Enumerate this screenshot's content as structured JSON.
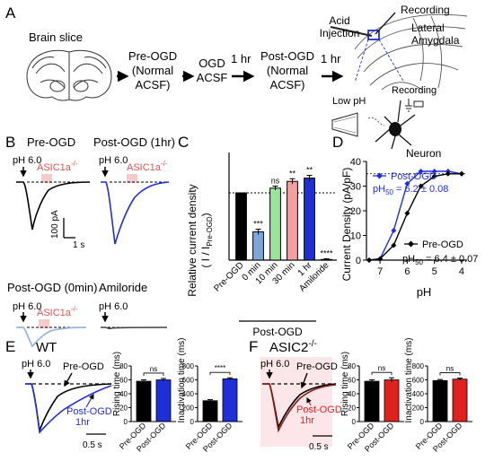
{
  "panelA": {
    "letter": "A",
    "brain_slice": "Brain slice",
    "preogd": [
      "Pre-OGD",
      "(Normal",
      "ACSF)"
    ],
    "ogd": [
      "OGD",
      "ACSF"
    ],
    "one_hr": "1 hr",
    "postogd": [
      "Post-OGD",
      "(Normal",
      "ACSF)"
    ],
    "acid": [
      "Acid",
      "Injection"
    ],
    "recording_top": "Recording",
    "lateral": [
      "Lateral",
      "Amygdala"
    ],
    "low_ph": "Low pH",
    "recording_bottom": "Recording",
    "neuron": "Neuron"
  },
  "panelB": {
    "letter": "B",
    "pre_title": "Pre-OGD",
    "post1_title": "Post-OGD (1hr)",
    "post0_title": "Post-OGD (0min)",
    "amil_title": "Amiloride",
    "ph": "pH 6.0",
    "asic": "ASIC1a",
    "ko": "-/-",
    "scale_y": "100 pA",
    "scale_x": "1 s"
  },
  "panelC": {
    "letter": "C",
    "ylabel_main": "Relative current density",
    "ylabel_sub": "( I / I",
    "ylabel_subsub": "Pre-OGD",
    "ylabel_close": ")",
    "group": "Post-OGD",
    "sig": [
      "",
      "***",
      "ns",
      "**",
      "**",
      "****"
    ]
  },
  "panelD": {
    "letter": "D",
    "xlabel": "pH",
    "ylabel": "Current Density (pA/pF)",
    "post_legend": "Post-OGD",
    "post_ph50": "pH",
    "post_ph50_sub": "50",
    "post_ph50_val": " = 6.2 ± 0.08",
    "pre_legend": "Pre-OGD",
    "pre_ph50": "pH",
    "pre_ph50_sub": "50",
    "pre_ph50_val": " = 6.4 ± 0.07"
  },
  "panelE": {
    "letter": "E",
    "title": "WT",
    "ph": "pH 6.0",
    "pre": "Pre-OGD",
    "post": [
      "Post-OGD",
      "1hr"
    ],
    "scale_x": "0.5 s",
    "rising_ylabel": "Rising time (ms)",
    "inact_ylabel": "Inactivation time (ms)",
    "rising_sig": "ns",
    "inact_sig": "****"
  },
  "panelF": {
    "letter": "F",
    "title": "ASIC2",
    "title_sup": "-/-",
    "ph": "pH 6.0",
    "pre": "Pre-OGD",
    "post": [
      "Post-OGD",
      "1hr"
    ],
    "scale_x": "0.5 s",
    "rising_ylabel": "Rising time (ms)",
    "inact_ylabel": "Inactivation time (ms)",
    "rising_sig": "ns",
    "inact_sig": "ns"
  },
  "colors": {
    "pre": "#000000",
    "post": "#1f2fd6",
    "post_light": "#9ab4e0",
    "ns_green": "#9be59b",
    "pink": "#f2a0a0",
    "asic_red": "#e05050",
    "red": "#e0221f",
    "asic2_trace": "#8a1a10"
  },
  "chart_data": [
    {
      "type": "bar",
      "panel": "C",
      "categories": [
        "Pre-OGD",
        "0 min",
        "10 min",
        "30 min",
        "1 hr",
        "Amiloride"
      ],
      "values": [
        1.0,
        0.42,
        1.07,
        1.17,
        1.22,
        0.01
      ],
      "errors": [
        0,
        0.04,
        0.03,
        0.04,
        0.04,
        0.01
      ],
      "ylim": [
        0,
        1.6
      ],
      "reference_line": 1.0
    },
    {
      "type": "line",
      "panel": "D",
      "x": [
        7.4,
        7.0,
        6.5,
        6.0,
        5.5,
        5.0,
        4.5,
        4.0
      ],
      "series": [
        {
          "name": "Post-OGD",
          "values": [
            0,
            0.5,
            12,
            31,
            36,
            36,
            36,
            35
          ]
        },
        {
          "name": "Pre-OGD",
          "values": [
            0,
            0.5,
            6,
            19,
            30,
            34,
            35,
            35
          ]
        }
      ],
      "xlim": [
        7.5,
        3.8
      ],
      "ylim": [
        0,
        40
      ],
      "xticks": [
        7,
        6,
        5,
        4
      ],
      "yticks": [
        0,
        10,
        20,
        30,
        40
      ]
    },
    {
      "type": "bar",
      "panel": "E-rising",
      "categories": [
        "Pre-OGD",
        "Post-OGD"
      ],
      "values": [
        58,
        60
      ],
      "errors": [
        2,
        2
      ],
      "ylim": [
        0,
        80
      ],
      "yticks": [
        0,
        20,
        40,
        60,
        80
      ]
    },
    {
      "type": "bar",
      "panel": "E-inactivation",
      "categories": [
        "Pre-OGD",
        "Post-OGD"
      ],
      "values": [
        300,
        615
      ],
      "errors": [
        15,
        15
      ],
      "ylim": [
        0,
        800
      ],
      "yticks": [
        0,
        200,
        400,
        600,
        800
      ]
    },
    {
      "type": "bar",
      "panel": "F-rising",
      "categories": [
        "Pre-OGD",
        "Post-OGD"
      ],
      "values": [
        58,
        60
      ],
      "errors": [
        2,
        3
      ],
      "ylim": [
        0,
        80
      ],
      "yticks": [
        0,
        20,
        40,
        60,
        80
      ]
    },
    {
      "type": "bar",
      "panel": "F-inactivation",
      "categories": [
        "Pre-OGD",
        "Post-OGD"
      ],
      "values": [
        590,
        610
      ],
      "errors": [
        15,
        15
      ],
      "ylim": [
        0,
        800
      ],
      "yticks": [
        0,
        200,
        400,
        600,
        800
      ]
    }
  ]
}
